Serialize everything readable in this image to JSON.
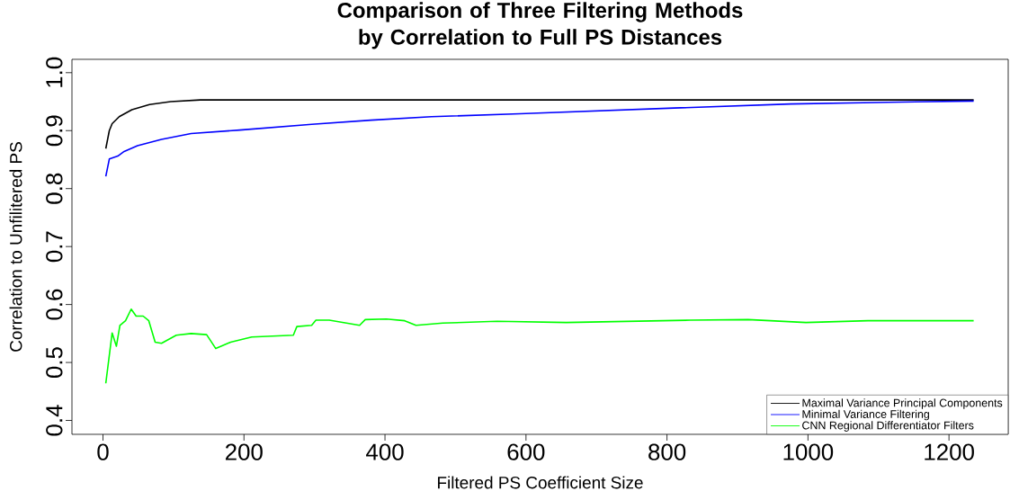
{
  "chart_data": {
    "type": "line",
    "title": "Comparison of Three Filtering Methods by Correlation to Full PS Distances",
    "xlabel": "Filtered PS Coefficient Size",
    "ylabel": "Correlation to Unfilitered PS",
    "xlim": [
      -44,
      1284
    ],
    "ylim": [
      0.376,
      1.023
    ],
    "xticks": [
      0,
      200,
      400,
      600,
      800,
      1000,
      1200
    ],
    "yticks": [
      0.4,
      0.5,
      0.6,
      0.7,
      0.8,
      0.9,
      {
        "value": 1.0,
        "label": "1.0"
      }
    ],
    "grid": false,
    "legend": "bottom right",
    "marker": "none",
    "line_style": "solid",
    "series": [
      {
        "name": "Maximal Variance Principal Components",
        "color": "#000000",
        "x": [
          4,
          9,
          13,
          23,
          41,
          66,
          96,
          138,
          1235
        ],
        "values": [
          0.869,
          0.9,
          0.912,
          0.924,
          0.936,
          0.945,
          0.95,
          0.953,
          0.953
        ]
      },
      {
        "name": "Minimal Variance Filtering",
        "color": "#0000ff",
        "x": [
          4,
          9,
          21,
          30,
          49,
          83,
          125,
          194,
          296,
          380,
          466,
          591,
          810,
          975,
          1113,
          1235
        ],
        "values": [
          0.821,
          0.851,
          0.856,
          0.864,
          0.874,
          0.885,
          0.895,
          0.901,
          0.911,
          0.918,
          0.924,
          0.929,
          0.939,
          0.946,
          0.949,
          0.951
        ]
      },
      {
        "name": "CNN Regional Differentiator Filters",
        "color": "#00ff00",
        "x": [
          4,
          13,
          19,
          24,
          32,
          40,
          47,
          57,
          65,
          74,
          83,
          104,
          125,
          147,
          160,
          181,
          211,
          270,
          275,
          296,
          302,
          321,
          364,
          372,
          402,
          428,
          444,
          482,
          559,
          657,
          833,
          915,
          997,
          1085,
          1235
        ],
        "values": [
          0.464,
          0.551,
          0.528,
          0.564,
          0.572,
          0.592,
          0.58,
          0.58,
          0.572,
          0.535,
          0.533,
          0.547,
          0.55,
          0.548,
          0.524,
          0.535,
          0.544,
          0.547,
          0.562,
          0.564,
          0.573,
          0.573,
          0.564,
          0.574,
          0.575,
          0.572,
          0.564,
          0.568,
          0.571,
          0.569,
          0.573,
          0.574,
          0.569,
          0.572,
          0.572
        ]
      }
    ]
  }
}
